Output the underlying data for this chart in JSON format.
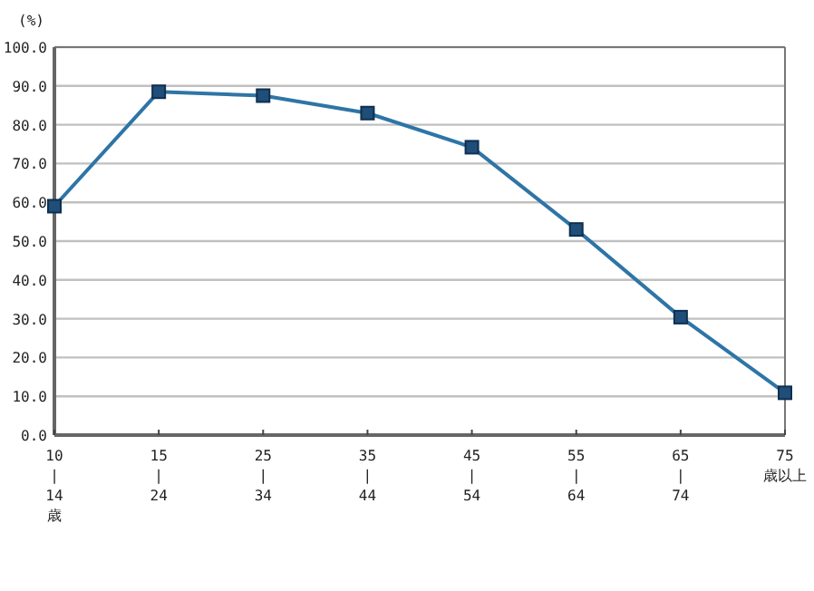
{
  "chart_data": {
    "type": "line",
    "ylabel": "(%)",
    "categories": [
      "10\n|\n14\n歳",
      "15\n|\n24",
      "25\n|\n34",
      "35\n|\n44",
      "45\n|\n54",
      "55\n|\n64",
      "65\n|\n74",
      "75\n歳以上"
    ],
    "series": [
      {
        "color": "#2e75a6",
        "values": [
          59.0,
          88.5,
          87.5,
          83.0,
          74.2,
          53.0,
          30.4,
          10.9
        ]
      }
    ],
    "ylim": [
      0,
      100
    ],
    "yticks": [
      {
        "value": 0,
        "label": "0.0"
      },
      {
        "value": 10,
        "label": "10.0"
      },
      {
        "value": 20,
        "label": "20.0"
      },
      {
        "value": 30,
        "label": "30.0"
      },
      {
        "value": 40,
        "label": "40.0"
      },
      {
        "value": 50,
        "label": "50.0"
      },
      {
        "value": 60,
        "label": "60.0"
      },
      {
        "value": 70,
        "label": "70.0"
      },
      {
        "value": 80,
        "label": "80.0"
      },
      {
        "value": 90,
        "label": "90.0"
      },
      {
        "value": 100,
        "label": "100.0"
      }
    ],
    "grid": "y",
    "marker": "square",
    "line_style": "solid"
  }
}
